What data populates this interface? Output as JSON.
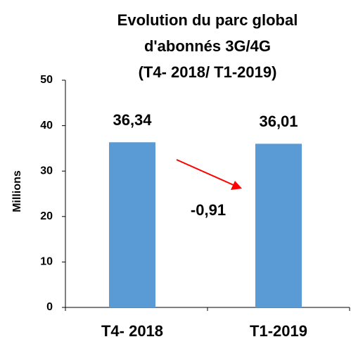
{
  "chart_data": {
    "type": "bar",
    "title": [
      "Evolution du parc global",
      "d'abonnés 3G/4G",
      "(T4- 2018/ T1-2019)"
    ],
    "y_label": "Millions",
    "categories": [
      "T4- 2018",
      "T1-2019"
    ],
    "values": [
      36.34,
      36.01
    ],
    "value_labels": [
      "36,34",
      "36,01"
    ],
    "color": "#5b9bd5",
    "ylim": [
      0,
      50
    ],
    "yticks": [
      0,
      10,
      20,
      30,
      40,
      50
    ],
    "annotation": {
      "text": "-0,91",
      "color": "#ff0000"
    }
  }
}
